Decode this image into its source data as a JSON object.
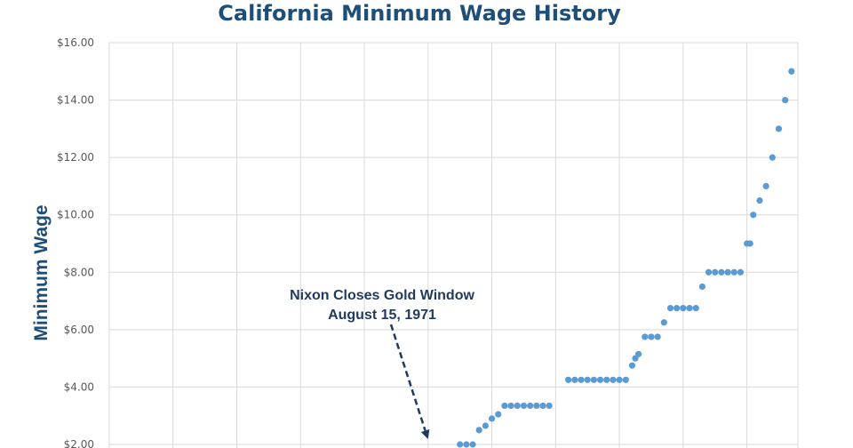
{
  "chart_data": {
    "type": "scatter",
    "title": "California Minimum Wage History",
    "xlabel": "",
    "ylabel": "Minimum Wage",
    "ylim": [
      2,
      16
    ],
    "yticks": [
      2,
      4,
      6,
      8,
      10,
      12,
      14,
      16
    ],
    "ytick_labels": [
      "$2.00",
      "$4.00",
      "$6.00",
      "$8.00",
      "$10.00",
      "$12.00",
      "$14.00",
      "$16.00"
    ],
    "xlim": [
      1916,
      2024
    ],
    "xgrid": [
      1926,
      1936,
      1946,
      1956,
      1966,
      1976,
      1986,
      1996,
      2006,
      2016
    ],
    "series": [
      {
        "name": "California Minimum Wage",
        "color": "#5b9bd5",
        "points": [
          [
            1971,
            2.0
          ],
          [
            1972,
            2.0
          ],
          [
            1973,
            2.0
          ],
          [
            1974,
            2.5
          ],
          [
            1975,
            2.65
          ],
          [
            1976,
            2.9
          ],
          [
            1977,
            3.05
          ],
          [
            1978,
            3.35
          ],
          [
            1979,
            3.35
          ],
          [
            1980,
            3.35
          ],
          [
            1981,
            3.35
          ],
          [
            1982,
            3.35
          ],
          [
            1983,
            3.35
          ],
          [
            1984,
            3.35
          ],
          [
            1985,
            3.35
          ],
          [
            1988,
            4.25
          ],
          [
            1989,
            4.25
          ],
          [
            1990,
            4.25
          ],
          [
            1991,
            4.25
          ],
          [
            1992,
            4.25
          ],
          [
            1993,
            4.25
          ],
          [
            1994,
            4.25
          ],
          [
            1995,
            4.25
          ],
          [
            1996,
            4.25
          ],
          [
            1997,
            4.25
          ],
          [
            1998,
            4.75
          ],
          [
            1998.5,
            5.0
          ],
          [
            1999,
            5.15
          ],
          [
            2000,
            5.75
          ],
          [
            2001,
            5.75
          ],
          [
            2002,
            5.75
          ],
          [
            2003,
            6.25
          ],
          [
            2004,
            6.75
          ],
          [
            2005,
            6.75
          ],
          [
            2006,
            6.75
          ],
          [
            2007,
            6.75
          ],
          [
            2008,
            6.75
          ],
          [
            2009,
            7.5
          ],
          [
            2010,
            8.0
          ],
          [
            2011,
            8.0
          ],
          [
            2012,
            8.0
          ],
          [
            2013,
            8.0
          ],
          [
            2014,
            8.0
          ],
          [
            2015,
            8.0
          ],
          [
            2016,
            9.0
          ],
          [
            2016.5,
            9.0
          ],
          [
            2017,
            10.0
          ],
          [
            2018,
            10.5
          ],
          [
            2019,
            11.0
          ],
          [
            2020,
            12.0
          ],
          [
            2021,
            13.0
          ],
          [
            2022,
            14.0
          ],
          [
            2023,
            15.0
          ]
        ]
      }
    ],
    "annotation": {
      "line1": "Nixon Closes Gold Window",
      "line2": "August 15, 1971",
      "target_year": 1971,
      "target_value": 2.0
    }
  }
}
